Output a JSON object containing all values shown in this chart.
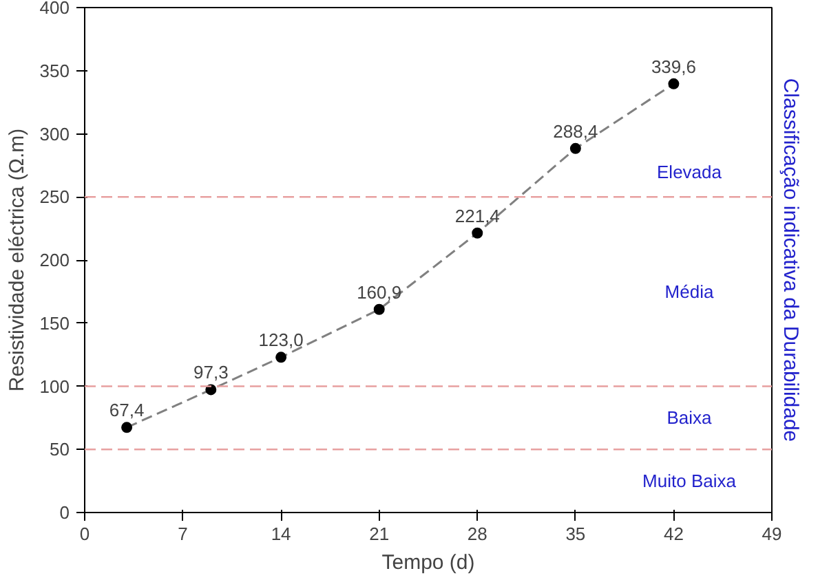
{
  "chart_data": {
    "type": "line",
    "xlabel": "Tempo (d)",
    "ylabel": "Resistividade eléctrica (Ω.m)",
    "y2label": "Classificação indicativa da Durabilidade",
    "x": [
      3,
      9,
      14,
      21,
      28,
      35,
      42
    ],
    "series": [
      {
        "color": "#808080",
        "values": [
          67.4,
          97.3,
          123.0,
          160.9,
          221.4,
          288.4,
          339.6
        ],
        "value_labels": [
          "67,4",
          "97,3",
          "123,0",
          "160,9",
          "221,4",
          "288,4",
          "339,6"
        ]
      }
    ],
    "xlim": [
      0,
      49
    ],
    "xticks": [
      0,
      7,
      14,
      21,
      28,
      35,
      42,
      49
    ],
    "ylim": [
      0,
      400
    ],
    "yticks": [
      0,
      50,
      100,
      150,
      200,
      250,
      300,
      350,
      400
    ],
    "ref_lines": [
      {
        "axis": "y",
        "value": 50,
        "color": "#e8a0a0",
        "line_style": "dashed"
      },
      {
        "axis": "y",
        "value": 100,
        "color": "#e8a0a0",
        "line_style": "dashed"
      },
      {
        "axis": "y",
        "value": 250,
        "color": "#e8a0a0",
        "line_style": "dashed"
      }
    ],
    "annotations": [
      "Elevada",
      "Média",
      "Baixa",
      "Muito Baixa"
    ],
    "grid": false,
    "marker": "circle",
    "line_style": "dashed"
  }
}
